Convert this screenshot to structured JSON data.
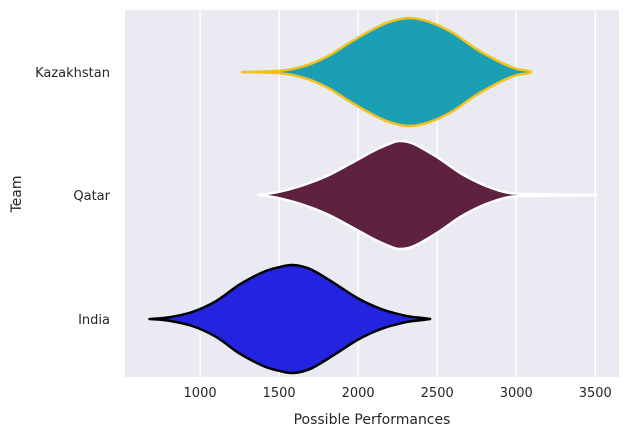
{
  "chart_data": {
    "type": "violin",
    "orientation": "horizontal",
    "xlabel": "Possible Performances",
    "ylabel": "Team",
    "xlim": [
      525,
      3650
    ],
    "x_ticks": [
      1000,
      1500,
      2000,
      2500,
      3000,
      3500
    ],
    "grid": true,
    "categories": [
      "Kazakhstan",
      "Qatar",
      "India"
    ],
    "series": [
      {
        "category": "Kazakhstan",
        "fill": "#1a9fb4",
        "edge": "#f5c01a",
        "profile": [
          [
            1265,
            0.0
          ],
          [
            1500,
            0.02
          ],
          [
            1650,
            0.1
          ],
          [
            1800,
            0.28
          ],
          [
            1950,
            0.55
          ],
          [
            2100,
            0.8
          ],
          [
            2200,
            0.93
          ],
          [
            2320,
            1.0
          ],
          [
            2450,
            0.93
          ],
          [
            2600,
            0.72
          ],
          [
            2750,
            0.42
          ],
          [
            2900,
            0.18
          ],
          [
            3000,
            0.06
          ],
          [
            3080,
            0.02
          ],
          [
            3095,
            0.0
          ]
        ]
      },
      {
        "category": "Qatar",
        "fill": "#5e2140",
        "edge": "#ffffff",
        "profile": [
          [
            1370,
            0.0
          ],
          [
            1500,
            0.06
          ],
          [
            1650,
            0.18
          ],
          [
            1800,
            0.35
          ],
          [
            1950,
            0.58
          ],
          [
            2100,
            0.82
          ],
          [
            2200,
            0.95
          ],
          [
            2260,
            1.0
          ],
          [
            2350,
            0.95
          ],
          [
            2500,
            0.7
          ],
          [
            2650,
            0.4
          ],
          [
            2800,
            0.18
          ],
          [
            2950,
            0.04
          ],
          [
            3100,
            0.02
          ],
          [
            3300,
            0.01
          ],
          [
            3510,
            0.0
          ]
        ]
      },
      {
        "category": "India",
        "fill": "#2323e0",
        "edge": "#000000",
        "profile": [
          [
            680,
            0.0
          ],
          [
            800,
            0.03
          ],
          [
            950,
            0.13
          ],
          [
            1100,
            0.33
          ],
          [
            1250,
            0.64
          ],
          [
            1400,
            0.87
          ],
          [
            1500,
            0.96
          ],
          [
            1590,
            1.0
          ],
          [
            1700,
            0.92
          ],
          [
            1850,
            0.66
          ],
          [
            2000,
            0.38
          ],
          [
            2150,
            0.18
          ],
          [
            2300,
            0.06
          ],
          [
            2400,
            0.02
          ],
          [
            2455,
            0.0
          ]
        ]
      }
    ]
  }
}
